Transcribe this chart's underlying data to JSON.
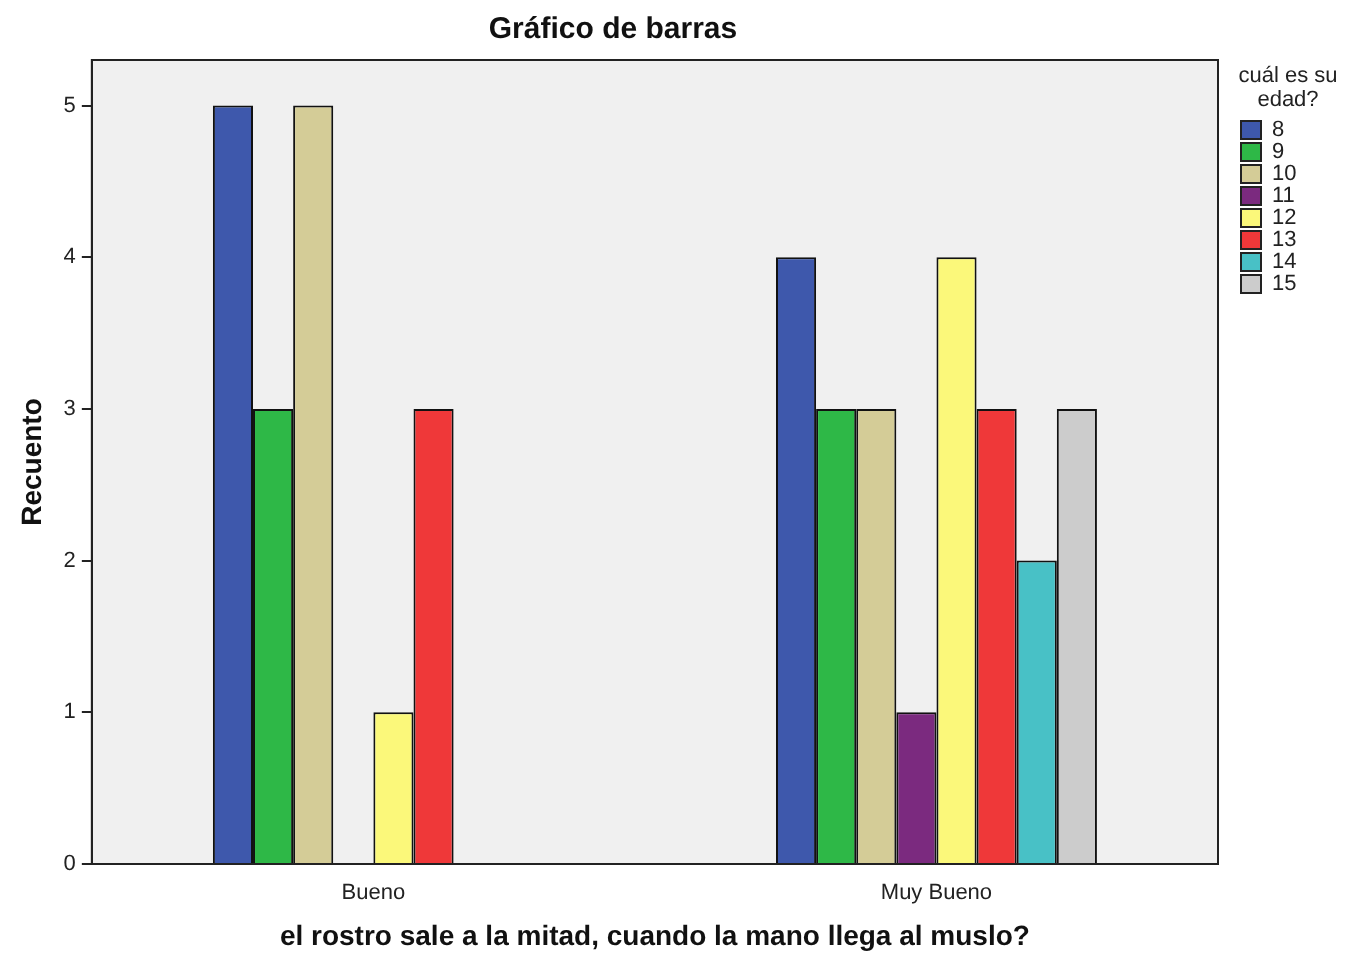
{
  "chart_data": {
    "type": "bar",
    "title": "Gráfico de barras",
    "xlabel": "el rostro sale a la mitad, cuando la mano llega al muslo?",
    "ylabel": "Recuento",
    "legend_title": "cuál es su edad?",
    "categories": [
      "Bueno",
      "Muy Bueno"
    ],
    "series": [
      {
        "name": "8",
        "color": "#3e58ac",
        "values": [
          5,
          4
        ]
      },
      {
        "name": "9",
        "color": "#2eb847",
        "values": [
          3,
          3
        ]
      },
      {
        "name": "10",
        "color": "#d4cc97",
        "values": [
          5,
          3
        ]
      },
      {
        "name": "11",
        "color": "#7b2a7f",
        "values": [
          0,
          1
        ]
      },
      {
        "name": "12",
        "color": "#fbf87a",
        "values": [
          1,
          4
        ]
      },
      {
        "name": "13",
        "color": "#ef3839",
        "values": [
          3,
          3
        ]
      },
      {
        "name": "14",
        "color": "#48c1c6",
        "values": [
          0,
          2
        ]
      },
      {
        "name": "15",
        "color": "#cccccc",
        "values": [
          0,
          3
        ]
      }
    ],
    "ylim": [
      0,
      5.3
    ],
    "yticks": [
      0,
      1,
      2,
      3,
      4,
      5
    ],
    "grid": false,
    "legend": "right"
  }
}
